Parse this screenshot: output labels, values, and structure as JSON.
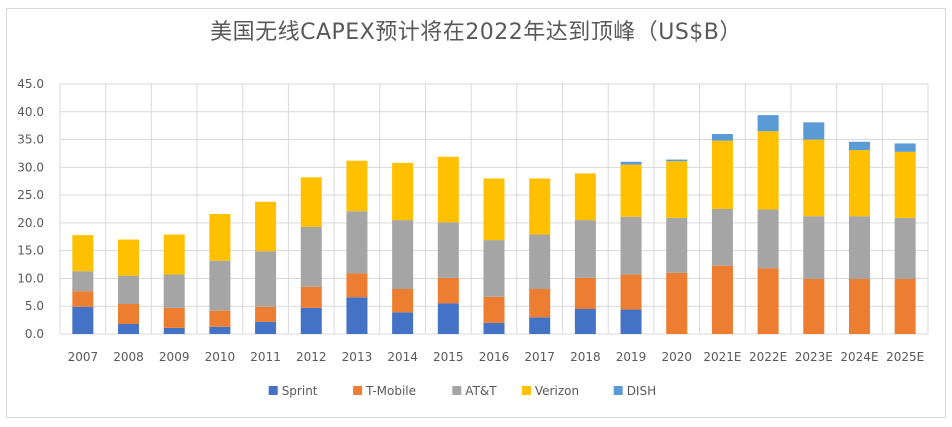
{
  "chart_data": {
    "type": "bar",
    "stacked": true,
    "title": "美国无线CAPEX预计将在2022年达到顶峰（US$B）",
    "xlabel": "",
    "ylabel": "",
    "ylim": [
      0,
      45
    ],
    "yticks": [
      0,
      5,
      10,
      15,
      20,
      25,
      30,
      35,
      40,
      45
    ],
    "ytick_labels": [
      "0.0",
      "5.0",
      "10.0",
      "15.0",
      "20.0",
      "25.0",
      "30.0",
      "35.0",
      "40.0",
      "45.0"
    ],
    "grid": true,
    "legend_position": "bottom",
    "categories": [
      "2007",
      "2008",
      "2009",
      "2010",
      "2011",
      "2012",
      "2013",
      "2014",
      "2015",
      "2016",
      "2017",
      "2018",
      "2019",
      "2020",
      "2021E",
      "2022E",
      "2023E",
      "2024E",
      "2025E"
    ],
    "series": [
      {
        "name": "Sprint",
        "color": "#4472c4",
        "values": [
          4.9,
          1.8,
          1.1,
          1.3,
          2.2,
          4.7,
          6.6,
          3.9,
          5.5,
          2.0,
          3.0,
          4.5,
          4.4,
          0,
          0,
          0,
          0,
          0,
          0
        ]
      },
      {
        "name": "T-Mobile",
        "color": "#ed7d31",
        "values": [
          2.8,
          3.6,
          3.6,
          2.9,
          2.7,
          3.8,
          4.3,
          4.2,
          4.6,
          4.7,
          5.1,
          5.6,
          6.3,
          11.0,
          12.3,
          11.8,
          9.9,
          9.9,
          9.9
        ]
      },
      {
        "name": "AT&T",
        "color": "#a5a5a5",
        "values": [
          3.6,
          5.1,
          6.0,
          9.0,
          10.0,
          10.8,
          11.2,
          12.4,
          10.0,
          10.2,
          9.8,
          10.4,
          10.4,
          9.9,
          10.2,
          10.6,
          11.3,
          11.3,
          11.0
        ]
      },
      {
        "name": "Verizon",
        "color": "#ffc000",
        "values": [
          6.5,
          6.5,
          7.2,
          8.4,
          8.9,
          8.9,
          9.1,
          10.3,
          11.8,
          11.1,
          10.1,
          8.4,
          9.4,
          10.2,
          12.3,
          14.1,
          13.8,
          11.9,
          11.9
        ]
      },
      {
        "name": "DISH",
        "color": "#5b9bd5",
        "values": [
          0,
          0,
          0,
          0,
          0,
          0,
          0,
          0,
          0,
          0,
          0,
          0,
          0.5,
          0.3,
          1.2,
          2.9,
          3.1,
          1.5,
          1.5
        ]
      }
    ]
  }
}
